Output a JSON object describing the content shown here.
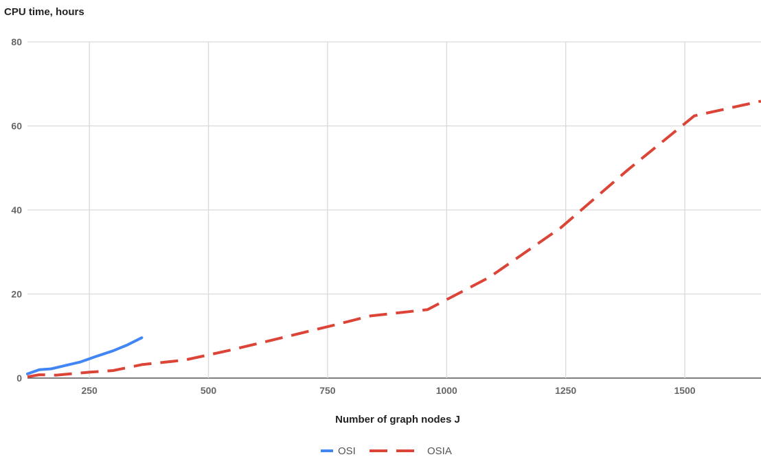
{
  "chart_data": {
    "type": "line",
    "title": "",
    "ylabel": "CPU time, hours",
    "xlabel": "Number of graph nodes J",
    "xlim": [
      120,
      1660
    ],
    "ylim": [
      0,
      80
    ],
    "xticks": [
      "250",
      "500",
      "750",
      "1000",
      "1250",
      "1500"
    ],
    "yticks": [
      "0",
      "20",
      "40",
      "60",
      "80"
    ],
    "grid": true,
    "legend_position": "bottom",
    "series": [
      {
        "name": "OSI",
        "color": "#4285f4",
        "style": "solid",
        "points": [
          [
            120,
            1.0
          ],
          [
            145,
            2.0
          ],
          [
            170,
            2.2
          ],
          [
            200,
            3.0
          ],
          [
            230,
            3.8
          ],
          [
            260,
            5.0
          ],
          [
            300,
            6.5
          ],
          [
            330,
            7.9
          ],
          [
            360,
            9.6
          ]
        ]
      },
      {
        "name": "OSIA",
        "color": "#db4437",
        "style": "dashed",
        "points": [
          [
            120,
            0.3
          ],
          [
            145,
            0.8
          ],
          [
            180,
            0.7
          ],
          [
            250,
            1.4
          ],
          [
            300,
            1.8
          ],
          [
            360,
            3.2
          ],
          [
            450,
            4.3
          ],
          [
            540,
            6.5
          ],
          [
            640,
            9.2
          ],
          [
            760,
            12.5
          ],
          [
            840,
            14.8
          ],
          [
            960,
            16.3
          ],
          [
            1090,
            24.0
          ],
          [
            1240,
            35.8
          ],
          [
            1380,
            49.5
          ],
          [
            1520,
            62.4
          ],
          [
            1660,
            65.9
          ]
        ]
      }
    ]
  }
}
